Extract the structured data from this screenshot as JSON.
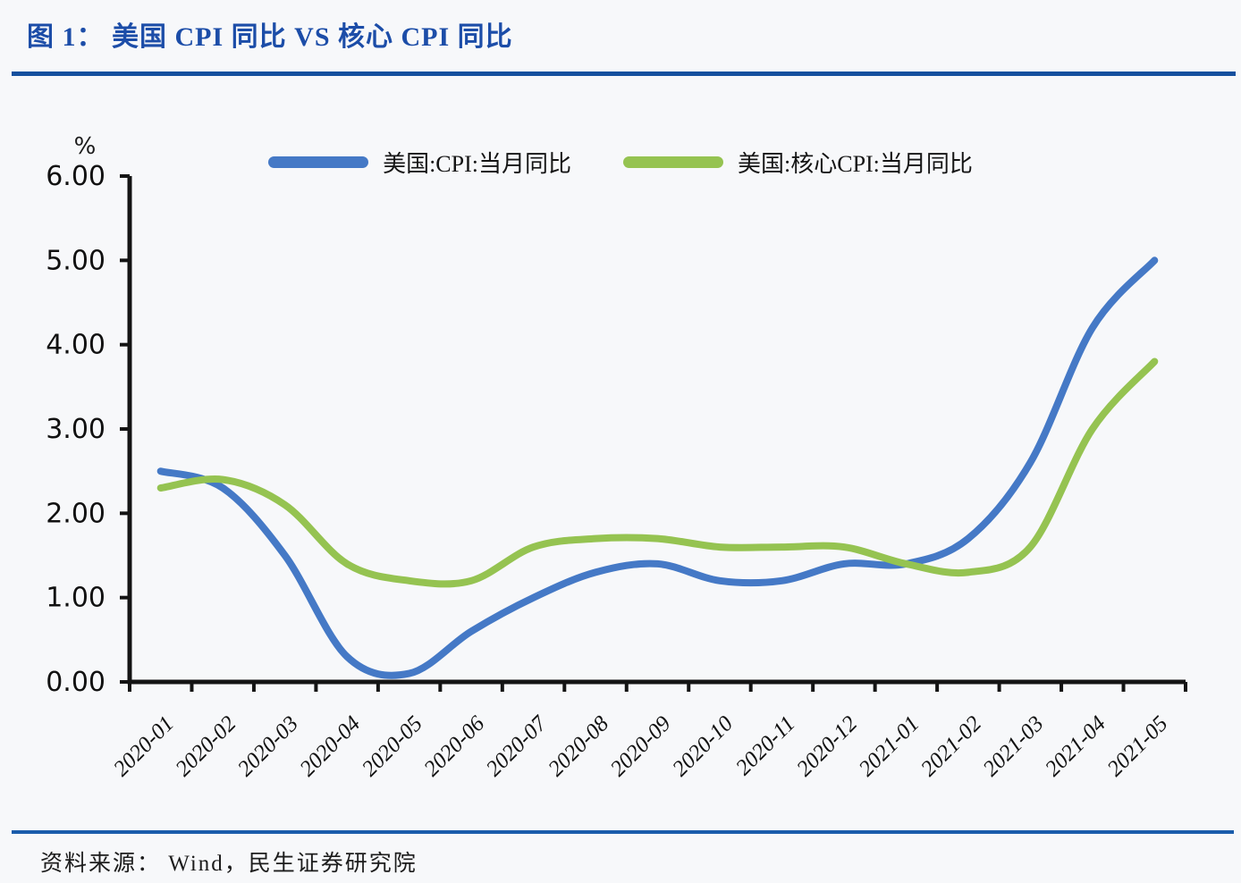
{
  "title": "图 1： 美国 CPI 同比 VS 核心 CPI 同比",
  "source_note": "资料来源： Wind，民生证券研究院",
  "colors": {
    "title_text": "#1c4da8",
    "top_divider": "#15509e",
    "bottom_divider": "#1a5cab",
    "axis": "#141414",
    "cpi_line": "#4579c6",
    "core_cpi_line": "#95c351",
    "background": "#f7f8fa"
  },
  "chart_data": {
    "type": "line",
    "title": "美国 CPI 同比 VS 核心 CPI 同比",
    "xlabel": "",
    "ylabel": "%",
    "ylim": [
      0,
      6
    ],
    "ytick_step": 1,
    "ytick_decimals": 2,
    "grid": false,
    "legend_position": "top-center",
    "categories": [
      "2020-01",
      "2020-02",
      "2020-03",
      "2020-04",
      "2020-05",
      "2020-06",
      "2020-07",
      "2020-08",
      "2020-09",
      "2020-10",
      "2020-11",
      "2020-12",
      "2021-01",
      "2021-02",
      "2021-03",
      "2021-04",
      "2021-05"
    ],
    "series": [
      {
        "name": "美国:CPI:当月同比",
        "color": "#4579c6",
        "values": [
          2.5,
          2.3,
          1.5,
          0.3,
          0.1,
          0.6,
          1.0,
          1.3,
          1.4,
          1.2,
          1.2,
          1.4,
          1.4,
          1.7,
          2.6,
          4.2,
          5.0
        ]
      },
      {
        "name": "美国:核心CPI:当月同比",
        "color": "#95c351",
        "values": [
          2.3,
          2.4,
          2.1,
          1.4,
          1.2,
          1.2,
          1.6,
          1.7,
          1.7,
          1.6,
          1.6,
          1.6,
          1.4,
          1.3,
          1.6,
          3.0,
          3.8
        ]
      }
    ]
  }
}
